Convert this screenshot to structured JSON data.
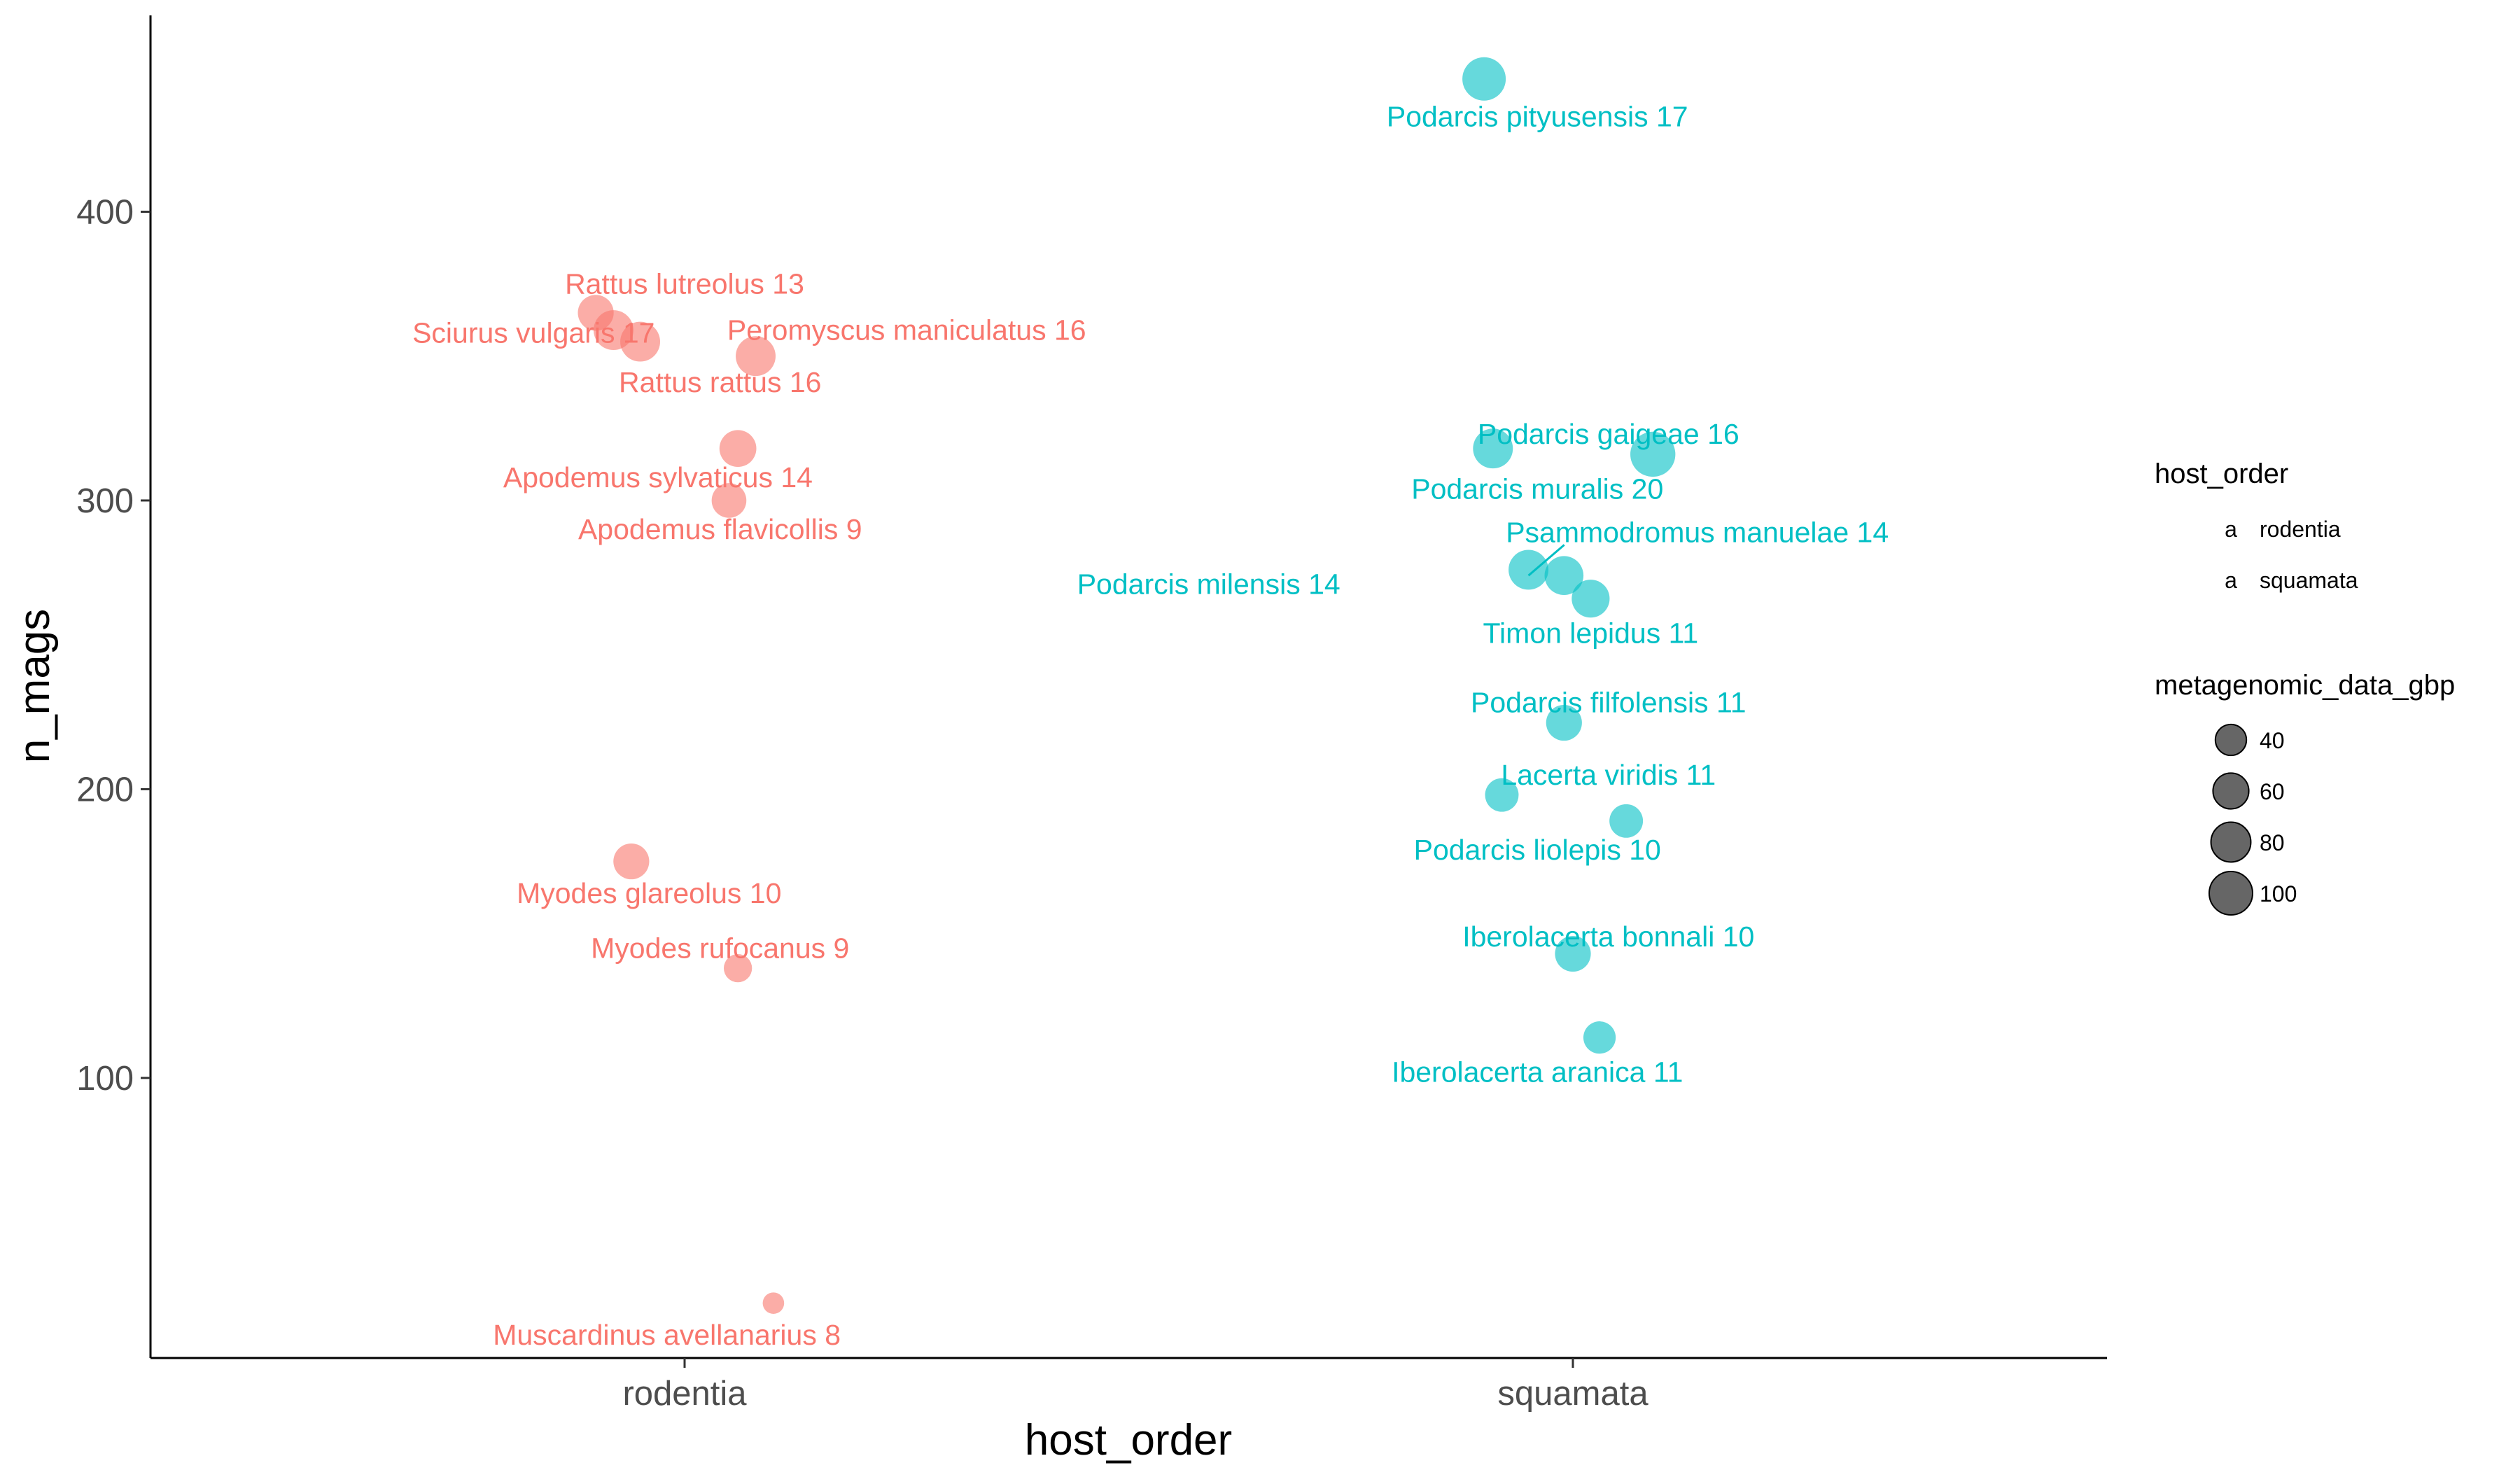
{
  "chart_data": {
    "type": "scatter",
    "title": "",
    "xlabel": "host_order",
    "ylabel": "n_mags",
    "categories": [
      "rodentia",
      "squamata"
    ],
    "yticks": [
      100,
      200,
      300,
      400
    ],
    "ylim": [
      3,
      468
    ],
    "grid": false,
    "legend_placement": "right",
    "legend": {
      "color_title": "host_order",
      "color_key_glyph": "a",
      "color_entries": [
        {
          "name": "rodentia",
          "color": "#F8766D"
        },
        {
          "name": "squamata",
          "color": "#00BFC4"
        }
      ],
      "size_title": "metagenomic_data_gbp",
      "size_entries": [
        {
          "value": 40,
          "label": "40"
        },
        {
          "value": 60,
          "label": "60"
        },
        {
          "value": 80,
          "label": "80"
        },
        {
          "value": 100,
          "label": "100"
        }
      ]
    },
    "series": [
      {
        "name": "rodentia",
        "color": "#F8766D",
        "points": [
          {
            "x": -0.1,
            "y": 365,
            "size": 60,
            "label": "Rattus lutreolus 13",
            "lx": 0.0,
            "ly": 375
          },
          {
            "x": -0.08,
            "y": 359,
            "size": 80,
            "label": "Sciurus vulgaris 17",
            "lx": -0.17,
            "ly": 358
          },
          {
            "x": -0.05,
            "y": 355,
            "size": 80,
            "label": "Rattus rattus 16",
            "lx": 0.04,
            "ly": 341
          },
          {
            "x": 0.08,
            "y": 350,
            "size": 80,
            "label": "Peromyscus maniculatus 16",
            "lx": 0.25,
            "ly": 359
          },
          {
            "x": 0.06,
            "y": 318,
            "size": 65,
            "label": "Apodemus sylvaticus 14",
            "lx": -0.03,
            "ly": 308
          },
          {
            "x": 0.05,
            "y": 300,
            "size": 55,
            "label": "Apodemus flavicollis 9",
            "lx": 0.04,
            "ly": 290
          },
          {
            "x": -0.06,
            "y": 175,
            "size": 60,
            "label": "Myodes glareolus 10",
            "lx": -0.04,
            "ly": 164
          },
          {
            "x": 0.06,
            "y": 138,
            "size": 30,
            "label": "Myodes rufocanus 9",
            "lx": 0.04,
            "ly": 145
          },
          {
            "x": 0.1,
            "y": 22,
            "size": 12,
            "label": "Muscardinus avellanarius 8",
            "lx": -0.02,
            "ly": 11
          }
        ]
      },
      {
        "name": "squamata",
        "color": "#00BFC4",
        "points": [
          {
            "x": -0.1,
            "y": 446,
            "size": 100,
            "label": "Podarcis pityusensis 17",
            "lx": -0.04,
            "ly": 433
          },
          {
            "x": -0.09,
            "y": 318,
            "size": 80,
            "label": "Podarcis gaigeae 16",
            "lx": 0.04,
            "ly": 323
          },
          {
            "x": 0.09,
            "y": 316,
            "size": 110,
            "label": "Podarcis muralis 20",
            "lx": -0.04,
            "ly": 304
          },
          {
            "x": -0.05,
            "y": 276,
            "size": 80,
            "label": "Podarcis milensis 14",
            "lx": -0.41,
            "ly": 271
          },
          {
            "x": -0.01,
            "y": 274,
            "size": 75,
            "label": "Psammodromus manuelae 14",
            "lx": 0.14,
            "ly": 289,
            "line_to": [
              -0.05,
              274
            ]
          },
          {
            "x": 0.02,
            "y": 266,
            "size": 70,
            "label": "Timon lepidus 11",
            "lx": 0.02,
            "ly": 254
          },
          {
            "x": -0.01,
            "y": 223,
            "size": 60,
            "label": "Podarcis filfolensis 11",
            "lx": 0.04,
            "ly": 230
          },
          {
            "x": -0.08,
            "y": 198,
            "size": 50,
            "label": "Lacerta viridis 11",
            "lx": 0.04,
            "ly": 205
          },
          {
            "x": 0.06,
            "y": 189,
            "size": 50,
            "label": "Podarcis liolepis 10",
            "lx": -0.04,
            "ly": 179
          },
          {
            "x": 0.0,
            "y": 143,
            "size": 60,
            "label": "Iberolacerta bonnali 10",
            "lx": 0.04,
            "ly": 149
          },
          {
            "x": 0.03,
            "y": 114,
            "size": 45,
            "label": "Iberolacerta aranica 11",
            "lx": -0.04,
            "ly": 102
          }
        ]
      }
    ]
  }
}
